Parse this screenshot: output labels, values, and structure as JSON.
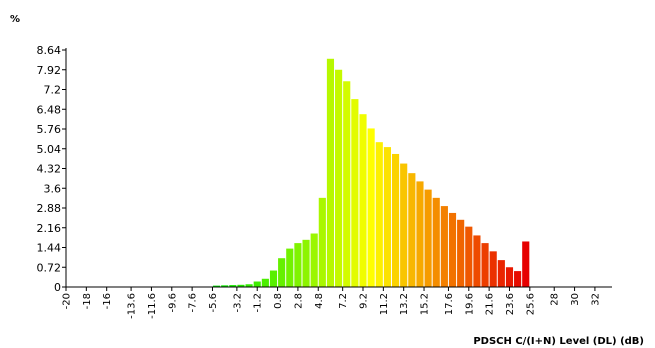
{
  "chart_data": {
    "type": "bar",
    "title": "",
    "ylabel": "%",
    "xlabel": "PDSCH C/(I+N) Level (DL) (dB)",
    "ylim": [
      0,
      8.64
    ],
    "yticks": [
      "0",
      "0.72",
      "1.44",
      "2.16",
      "2.88",
      "3.6",
      "4.32",
      "5.04",
      "5.76",
      "6.48",
      "7.2",
      "7.92",
      "8.64"
    ],
    "xticks": [
      "-20",
      "-18",
      "-16",
      "-13.6",
      "-11.6",
      "-9.6",
      "-7.6",
      "-5.6",
      "-3.2",
      "-1.2",
      "0.8",
      "2.8",
      "4.8",
      "7.2",
      "9.2",
      "11.2",
      "13.2",
      "15.2",
      "17.6",
      "19.6",
      "21.6",
      "23.6",
      "25.6",
      "28",
      "30",
      "32"
    ],
    "bins_start": -5.6,
    "bin_width": 0.8,
    "values": [
      0.05,
      0.06,
      0.07,
      0.08,
      0.1,
      0.2,
      0.3,
      0.6,
      1.05,
      1.4,
      1.6,
      1.72,
      1.95,
      3.25,
      8.32,
      7.92,
      7.5,
      6.85,
      6.3,
      5.78,
      5.28,
      5.1,
      4.85,
      4.5,
      4.15,
      3.85,
      3.55,
      3.25,
      2.95,
      2.7,
      2.45,
      2.2,
      1.88,
      1.6,
      1.3,
      0.98,
      0.72,
      0.58,
      1.66
    ],
    "grid": false,
    "legend": "none"
  }
}
